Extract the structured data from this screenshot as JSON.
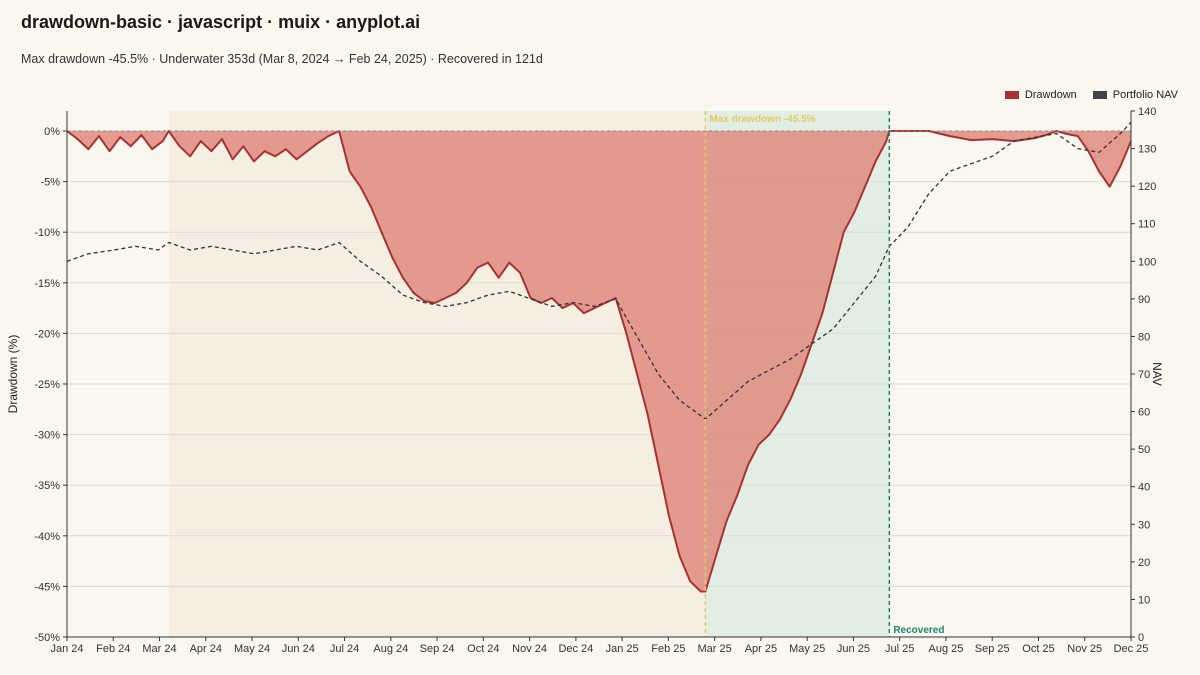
{
  "header": {
    "title": "drawdown-basic · javascript · muix · anyplot.ai",
    "subtitle": "Max drawdown -45.5% · Underwater 353d (Mar 8, 2024 → Feb 24, 2025) · Recovered in 121d"
  },
  "legend": {
    "drawdown_label": "Drawdown",
    "nav_label": "Portfolio NAV"
  },
  "colors": {
    "drawdown_fill": "#df8a7e",
    "drawdown_line": "#a83232",
    "nav_line": "#333333",
    "underwater_band": "#f4efe0",
    "recovery_band": "#e2eee3",
    "max_dd_marker": "#e0cc66",
    "recovered_marker": "#1a8a6a"
  },
  "annotations": {
    "max_dd_label": "Max drawdown -45.5%",
    "recovered_label": "Recovered"
  },
  "chart_data": {
    "type": "area",
    "x_axis": {
      "range": [
        "2024-01-01",
        "2025-12-01"
      ],
      "tick_labels": [
        "Jan 24",
        "Feb 24",
        "Mar 24",
        "Apr 24",
        "May 24",
        "Jun 24",
        "Jul 24",
        "Aug 24",
        "Sep 24",
        "Oct 24",
        "Nov 24",
        "Dec 24",
        "Jan 25",
        "Feb 25",
        "Mar 25",
        "Apr 25",
        "May 25",
        "Jun 25",
        "Jul 25",
        "Aug 25",
        "Sep 25",
        "Oct 25",
        "Nov 25",
        "Dec 25"
      ]
    },
    "y_left": {
      "label": "Drawdown (%)",
      "range": [
        -50,
        0
      ],
      "tick_labels": [
        "0%",
        "-5%",
        "-10%",
        "-15%",
        "-20%",
        "-25%",
        "-30%",
        "-35%",
        "-40%",
        "-45%",
        "-50%"
      ]
    },
    "y_right": {
      "label": "NAV",
      "range": [
        0,
        140
      ],
      "tick_labels": [
        "0",
        "10",
        "20",
        "30",
        "40",
        "50",
        "60",
        "70",
        "80",
        "90",
        "100",
        "110",
        "120",
        "130",
        "140"
      ]
    },
    "grid": true,
    "legend_position": "top-right",
    "underwater_period": [
      "2024-03-08",
      "2025-02-24"
    ],
    "recovery_period": [
      "2025-02-24",
      "2025-06-25"
    ],
    "max_drawdown_date": "2025-02-24",
    "recovered_date": "2025-06-25",
    "series": [
      {
        "name": "Drawdown",
        "axis": "left",
        "x": [
          "2024-01-01",
          "2024-01-08",
          "2024-01-15",
          "2024-01-22",
          "2024-01-29",
          "2024-02-05",
          "2024-02-12",
          "2024-02-19",
          "2024-02-26",
          "2024-03-04",
          "2024-03-08",
          "2024-03-15",
          "2024-03-22",
          "2024-03-29",
          "2024-04-05",
          "2024-04-12",
          "2024-04-19",
          "2024-04-26",
          "2024-05-03",
          "2024-05-10",
          "2024-05-17",
          "2024-05-24",
          "2024-05-31",
          "2024-06-07",
          "2024-06-14",
          "2024-06-21",
          "2024-06-28",
          "2024-07-05",
          "2024-07-12",
          "2024-07-19",
          "2024-07-26",
          "2024-08-02",
          "2024-08-09",
          "2024-08-16",
          "2024-08-23",
          "2024-08-30",
          "2024-09-06",
          "2024-09-13",
          "2024-09-20",
          "2024-09-27",
          "2024-10-04",
          "2024-10-11",
          "2024-10-18",
          "2024-10-25",
          "2024-11-01",
          "2024-11-08",
          "2024-11-15",
          "2024-11-22",
          "2024-11-29",
          "2024-12-06",
          "2024-12-13",
          "2024-12-20",
          "2024-12-27",
          "2025-01-03",
          "2025-01-10",
          "2025-01-17",
          "2025-01-24",
          "2025-01-31",
          "2025-02-07",
          "2025-02-14",
          "2025-02-21",
          "2025-02-24",
          "2025-03-03",
          "2025-03-10",
          "2025-03-17",
          "2025-03-24",
          "2025-03-31",
          "2025-04-07",
          "2025-04-14",
          "2025-04-21",
          "2025-04-28",
          "2025-05-05",
          "2025-05-12",
          "2025-05-19",
          "2025-05-26",
          "2025-06-02",
          "2025-06-09",
          "2025-06-16",
          "2025-06-23",
          "2025-06-25",
          "2025-07-07",
          "2025-07-21",
          "2025-08-04",
          "2025-08-18",
          "2025-09-01",
          "2025-09-15",
          "2025-09-29",
          "2025-10-06",
          "2025-10-13",
          "2025-10-20",
          "2025-10-27",
          "2025-11-03",
          "2025-11-10",
          "2025-11-17",
          "2025-11-24",
          "2025-12-01"
        ],
        "values": [
          0,
          -0.8,
          -1.8,
          -0.5,
          -2.0,
          -0.6,
          -1.5,
          -0.4,
          -1.8,
          -1.0,
          0,
          -1.5,
          -2.5,
          -1.0,
          -2.0,
          -0.8,
          -2.8,
          -1.5,
          -3.0,
          -2.0,
          -2.5,
          -1.8,
          -2.8,
          -2.0,
          -1.2,
          -0.5,
          0,
          -4.0,
          -5.5,
          -7.5,
          -10.0,
          -12.5,
          -14.5,
          -16.0,
          -16.8,
          -17.0,
          -16.5,
          -16.0,
          -15.0,
          -13.5,
          -13.0,
          -14.5,
          -13.0,
          -14.0,
          -16.5,
          -17.0,
          -16.5,
          -17.5,
          -17.0,
          -18.0,
          -17.5,
          -17.0,
          -16.5,
          -20.0,
          -24.0,
          -28.0,
          -33.0,
          -38.0,
          -42.0,
          -44.5,
          -45.5,
          -45.5,
          -42.0,
          -38.5,
          -36.0,
          -33.0,
          -31.0,
          -30.0,
          -28.5,
          -26.5,
          -24.0,
          -21.0,
          -18.0,
          -14.0,
          -10.0,
          -8.0,
          -5.5,
          -3.0,
          -1.0,
          0,
          0,
          0,
          -0.5,
          -0.9,
          -0.8,
          -1.0,
          -0.7,
          -0.4,
          0,
          -0.3,
          -0.5,
          -2.0,
          -4.0,
          -5.5,
          -3.5,
          -1.0
        ]
      },
      {
        "name": "Portfolio NAV",
        "axis": "right",
        "x": [
          "2024-01-01",
          "2024-01-15",
          "2024-02-01",
          "2024-02-15",
          "2024-03-01",
          "2024-03-08",
          "2024-03-22",
          "2024-04-05",
          "2024-04-19",
          "2024-05-03",
          "2024-05-17",
          "2024-05-31",
          "2024-06-14",
          "2024-06-28",
          "2024-07-12",
          "2024-07-26",
          "2024-08-09",
          "2024-08-23",
          "2024-09-06",
          "2024-09-20",
          "2024-10-04",
          "2024-10-18",
          "2024-11-01",
          "2024-11-15",
          "2024-11-29",
          "2024-12-13",
          "2024-12-27",
          "2025-01-10",
          "2025-01-24",
          "2025-02-07",
          "2025-02-24",
          "2025-03-10",
          "2025-03-24",
          "2025-04-07",
          "2025-04-21",
          "2025-05-05",
          "2025-05-19",
          "2025-06-02",
          "2025-06-16",
          "2025-06-25",
          "2025-07-07",
          "2025-07-21",
          "2025-08-04",
          "2025-08-18",
          "2025-09-01",
          "2025-09-15",
          "2025-09-29",
          "2025-10-13",
          "2025-10-27",
          "2025-11-10",
          "2025-11-24",
          "2025-12-01"
        ],
        "values": [
          100,
          102,
          103,
          104,
          103,
          105,
          103,
          104,
          103,
          102,
          103,
          104,
          103,
          105,
          100,
          96,
          91,
          89,
          88,
          89,
          91,
          92,
          90,
          88,
          89,
          88,
          90,
          80,
          70,
          63,
          58,
          63,
          68,
          71,
          74,
          78,
          82,
          89,
          96,
          104,
          109,
          118,
          124,
          126,
          128,
          132,
          133,
          134,
          130,
          129,
          134,
          137
        ]
      }
    ]
  }
}
